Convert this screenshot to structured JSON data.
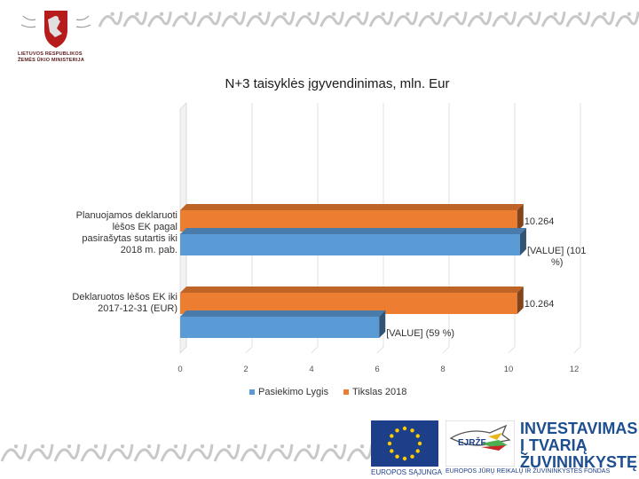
{
  "header": {
    "logo_lines": [
      "LIETUVOS RESPUBLIKOS",
      "ŽEMĖS ŪKIO MINISTERIJA"
    ]
  },
  "chart_data": {
    "type": "bar",
    "orientation": "horizontal",
    "title": "N+3 taisyklės įgyvendinimas, mln. Eur",
    "categories": [
      "Planuojamos deklaruoti lėšos EK pagal pasirašytas sutartis iki 2018 m. pab.",
      "Deklaruotos lėšos EK iki 2017-12-31 (EUR)"
    ],
    "series": [
      {
        "name": "Pasiekimo Lygis",
        "values": [
          10.35,
          6.06
        ],
        "data_labels": [
          "[VALUE] (101 %)",
          "[VALUE] (59 %)"
        ],
        "color": "#5b9bd5"
      },
      {
        "name": "Tikslas 2018",
        "values": [
          10.264,
          10.264
        ],
        "data_labels": [
          "10.264",
          "10.264"
        ],
        "color": "#ed7d31"
      }
    ],
    "xlim": [
      0,
      12
    ],
    "x_ticks": [
      0,
      2,
      4,
      6,
      8,
      10,
      12
    ],
    "grid": true,
    "legend_position": "bottom"
  },
  "footer": {
    "eu_label": "EUROPOS SĄJUNGA",
    "ejrzf_mark": "EJRŽF",
    "ejrzf_label": "EUROPOS JŪRŲ REIKALŲ IR ŽUVININKYSTĖS FONDAS",
    "investment_lines": [
      "INVESTAVIMAS",
      "Į TVARIĄ",
      "ŽUVININKYSTĘ"
    ]
  },
  "colors": {
    "blue_series": "#5b9bd5",
    "orange_series": "#ed7d31",
    "grid": "#d9d9d9",
    "ornament": "#c8c8c8"
  }
}
